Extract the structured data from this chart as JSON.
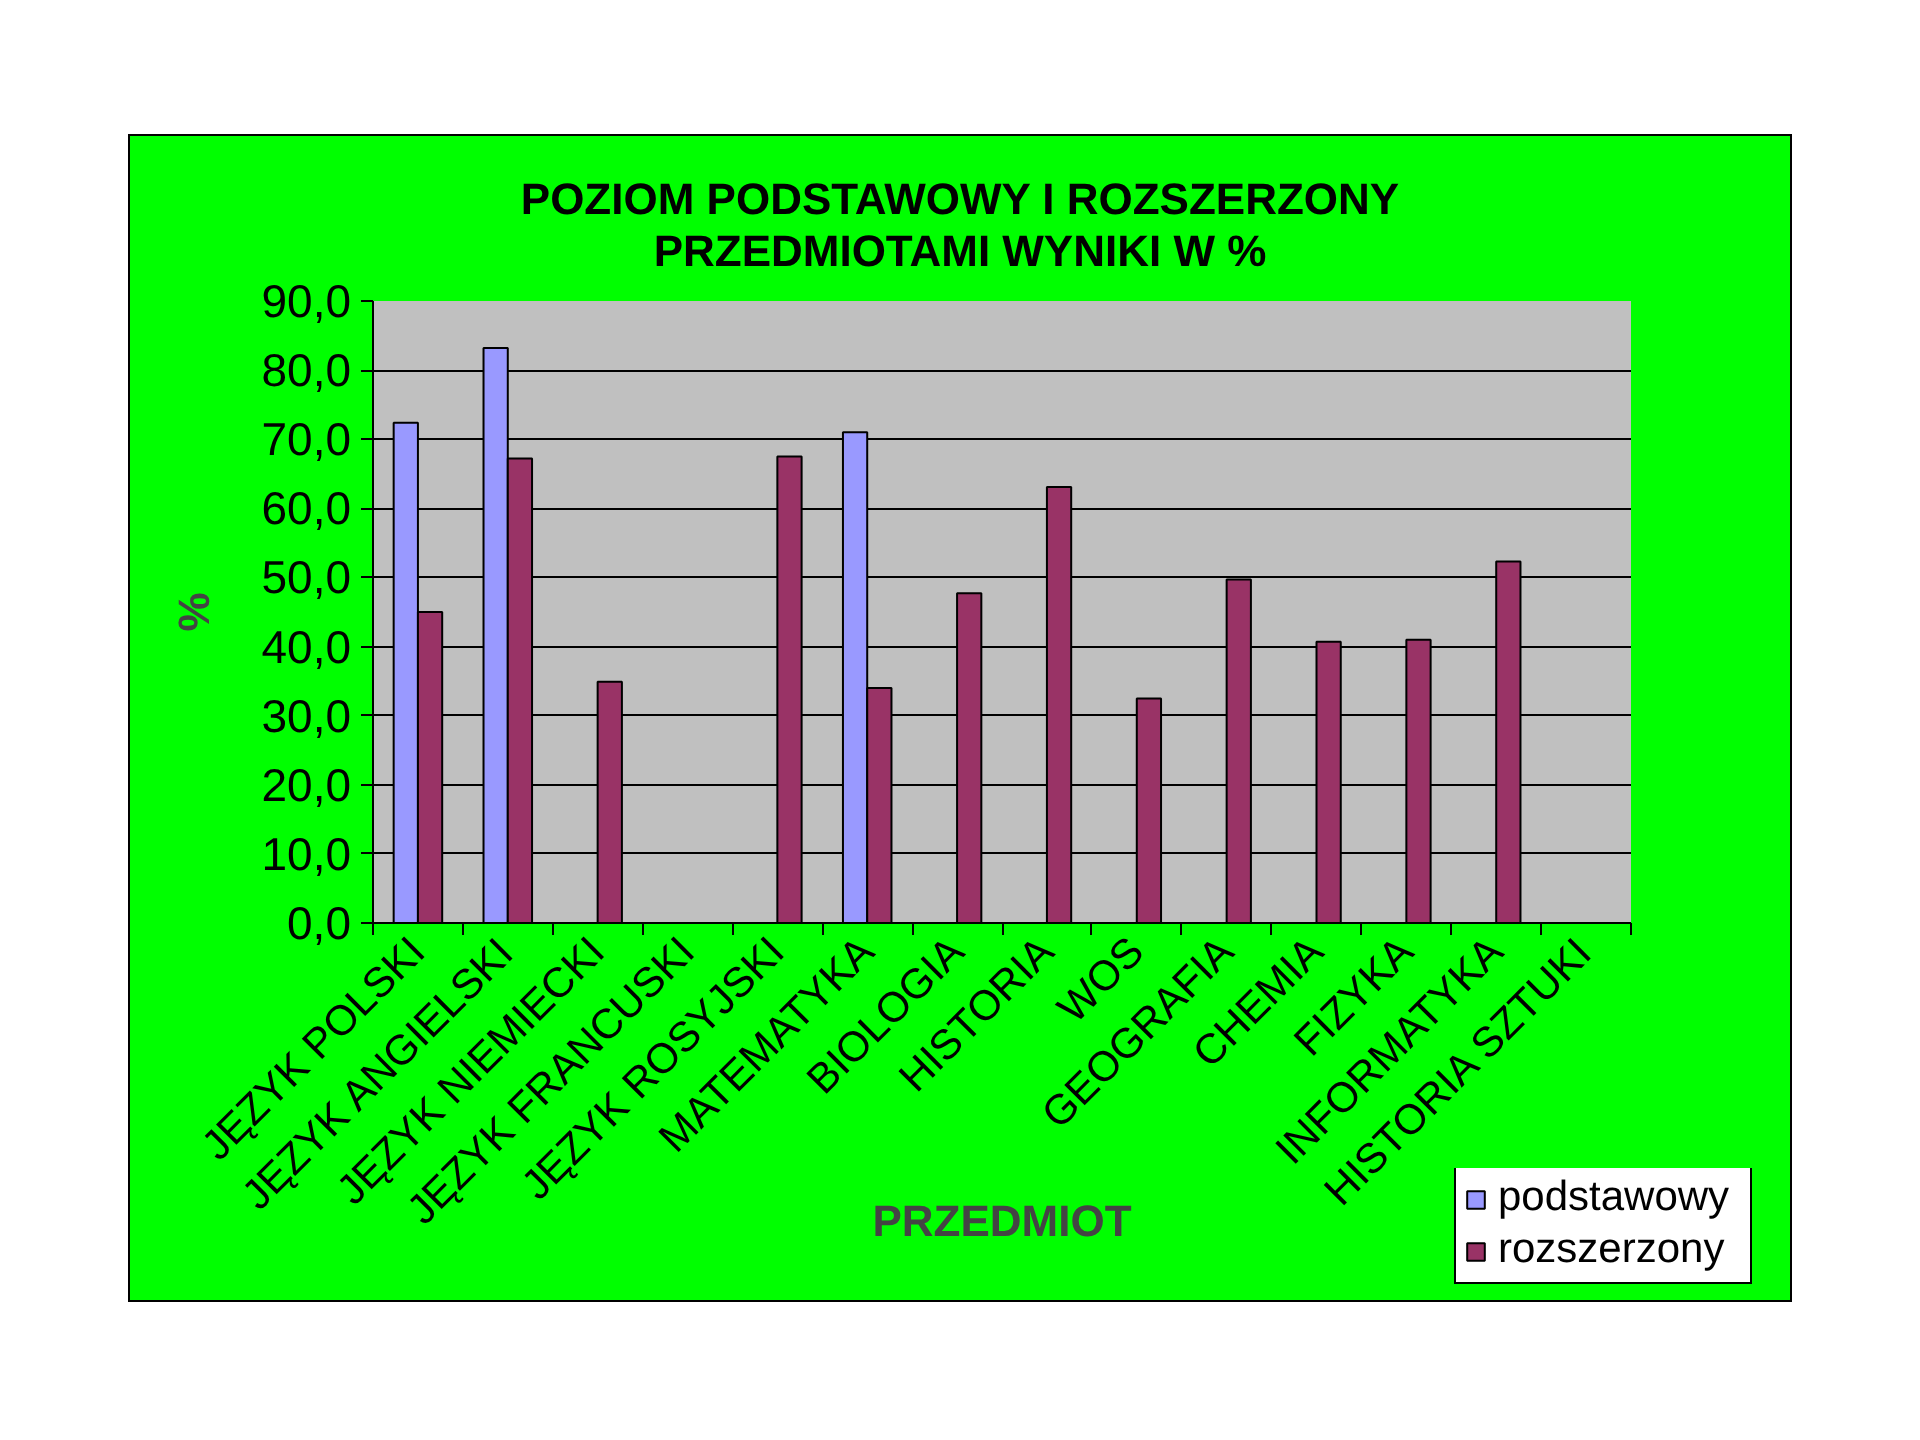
{
  "chart_data": {
    "type": "bar",
    "title": "POZIOM PODSTAWOWY I ROZSZERZONY\nPRZEDMIOTAMI WYNIKI W %",
    "xlabel": "PRZEDMIOT",
    "ylabel": "%",
    "categories": [
      "JĘZYK POLSKI",
      "JĘZYK ANGIELSKI",
      "JĘZYK NIEMIECKI",
      "JĘZYK FRANCUSKI",
      "JĘZYK ROSYJSKI",
      "MATEMATYKA",
      "BIOLOGIA",
      "HISTORIA",
      "WOS",
      "GEOGRAFIA",
      "CHEMIA",
      "FIZYKA",
      "INFORMATYKA",
      "HISTORIA SZTUKI"
    ],
    "series": [
      {
        "name": "podstawowy",
        "color": "#9999ff",
        "values": [
          72.4,
          83.2,
          null,
          null,
          null,
          71.0,
          null,
          null,
          null,
          null,
          null,
          null,
          null,
          null
        ]
      },
      {
        "name": "rozszerzony",
        "color": "#993366",
        "values": [
          45.0,
          67.2,
          34.9,
          null,
          67.5,
          34.0,
          47.7,
          63.1,
          32.5,
          49.7,
          40.7,
          41.0,
          52.3,
          null
        ]
      }
    ],
    "ylim": [
      0,
      90
    ],
    "yticks": [
      {
        "value": 0,
        "label": "0,0"
      },
      {
        "value": 10,
        "label": "10,0"
      },
      {
        "value": 20,
        "label": "20,0"
      },
      {
        "value": 30,
        "label": "30,0"
      },
      {
        "value": 40,
        "label": "40,0"
      },
      {
        "value": 50,
        "label": "50,0"
      },
      {
        "value": 60,
        "label": "60,0"
      },
      {
        "value": 70,
        "label": "70,0"
      },
      {
        "value": 80,
        "label": "80,0"
      },
      {
        "value": 90,
        "label": "90,0"
      }
    ],
    "grid": "y",
    "legend": "bottom right"
  }
}
